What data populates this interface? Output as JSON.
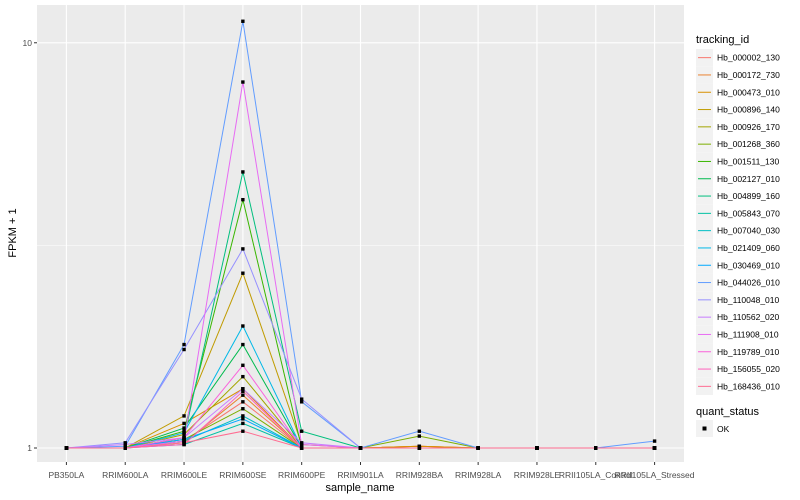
{
  "chart_data": {
    "type": "line",
    "xlabel": "sample_name",
    "ylabel": "FPKM + 1",
    "y_scale": "log",
    "ylim": [
      1,
      11
    ],
    "yticks": [
      1,
      10
    ],
    "ytick_labels": [
      "1",
      "10"
    ],
    "grid": true,
    "legend_placement": "right",
    "legend_title": "tracking_id",
    "legend2_title": "quant_status",
    "legend2_label": "OK",
    "point_color": "#000000",
    "categories": [
      "PB350LA",
      "RRIM600LA",
      "RRIM600LE",
      "RRIM600SE",
      "RRIM600PE",
      "RRIM901LA",
      "RRIM928BA",
      "RRIM928LA",
      "RRIM928LE",
      "RRII105LA_Control",
      "RRII105LA_Stressed"
    ],
    "series": [
      {
        "name": "Hb_000002_130",
        "color": "#F8766D",
        "values": [
          1.0,
          1.0,
          1.04,
          1.3,
          1.0,
          1.0,
          1.01,
          1.0,
          1.0,
          1.0,
          1.0
        ]
      },
      {
        "name": "Hb_000172_730",
        "color": "#EA8331",
        "values": [
          1.0,
          1.0,
          1.03,
          1.35,
          1.0,
          1.0,
          1.01,
          1.0,
          1.0,
          1.0,
          1.0
        ]
      },
      {
        "name": "Hb_000473_010",
        "color": "#D89000",
        "values": [
          1.0,
          1.0,
          1.15,
          1.4,
          1.0,
          1.0,
          1.01,
          1.0,
          1.0,
          1.0,
          1.0
        ]
      },
      {
        "name": "Hb_000896_140",
        "color": "#C09B00",
        "values": [
          1.0,
          1.0,
          1.2,
          2.7,
          1.02,
          1.0,
          1.0,
          1.0,
          1.0,
          1.0,
          1.0
        ]
      },
      {
        "name": "Hb_000926_170",
        "color": "#A3A500",
        "values": [
          1.0,
          1.0,
          1.08,
          1.5,
          1.0,
          1.0,
          1.0,
          1.0,
          1.0,
          1.0,
          1.0
        ]
      },
      {
        "name": "Hb_001268_360",
        "color": "#7CAE00",
        "values": [
          1.0,
          1.0,
          1.05,
          1.25,
          1.0,
          1.0,
          1.07,
          1.0,
          1.0,
          1.0,
          1.0
        ]
      },
      {
        "name": "Hb_001511_130",
        "color": "#39B600",
        "values": [
          1.0,
          1.0,
          1.1,
          4.1,
          1.0,
          1.0,
          1.0,
          1.0,
          1.0,
          1.0,
          1.0
        ]
      },
      {
        "name": "Hb_002127_010",
        "color": "#00BB4E",
        "values": [
          1.0,
          1.0,
          1.12,
          1.8,
          1.0,
          1.0,
          1.0,
          1.0,
          1.0,
          1.0,
          1.0
        ]
      },
      {
        "name": "Hb_004899_160",
        "color": "#00BF7D",
        "values": [
          1.0,
          1.0,
          1.06,
          4.8,
          1.1,
          1.0,
          1.0,
          1.0,
          1.0,
          1.0,
          1.0
        ]
      },
      {
        "name": "Hb_005843_070",
        "color": "#00C1A3",
        "values": [
          1.0,
          1.0,
          1.02,
          1.15,
          1.0,
          1.0,
          1.0,
          1.0,
          1.0,
          1.0,
          1.0
        ]
      },
      {
        "name": "Hb_007040_030",
        "color": "#00BFC4",
        "values": [
          1.0,
          1.0,
          1.04,
          1.2,
          1.0,
          1.0,
          1.0,
          1.0,
          1.0,
          1.0,
          1.0
        ]
      },
      {
        "name": "Hb_021409_060",
        "color": "#00B8E7",
        "values": [
          1.0,
          1.0,
          1.09,
          2.0,
          1.0,
          1.0,
          1.0,
          1.0,
          1.0,
          1.0,
          1.0
        ]
      },
      {
        "name": "Hb_030469_010",
        "color": "#00A9FF",
        "values": [
          1.0,
          1.0,
          1.05,
          1.18,
          1.0,
          1.0,
          1.0,
          1.0,
          1.0,
          1.0,
          1.0
        ]
      },
      {
        "name": "Hb_044026_010",
        "color": "#619CFF",
        "values": [
          1.0,
          1.01,
          1.8,
          11.3,
          1.3,
          1.0,
          1.1,
          1.0,
          1.0,
          1.0,
          1.04
        ]
      },
      {
        "name": "Hb_110048_010",
        "color": "#9590FF",
        "values": [
          1.0,
          1.03,
          1.75,
          3.1,
          1.32,
          1.0,
          1.0,
          1.0,
          1.0,
          1.0,
          1.0
        ]
      },
      {
        "name": "Hb_110562_020",
        "color": "#C77CFF",
        "values": [
          1.0,
          1.02,
          1.06,
          1.4,
          1.03,
          1.0,
          1.0,
          1.0,
          1.0,
          1.0,
          1.0
        ]
      },
      {
        "name": "Hb_111908_010",
        "color": "#E76BF3",
        "values": [
          1.0,
          1.0,
          1.04,
          8.0,
          1.02,
          1.0,
          1.0,
          1.0,
          1.0,
          1.0,
          1.0
        ]
      },
      {
        "name": "Hb_119789_010",
        "color": "#FA62DB",
        "values": [
          1.0,
          1.0,
          1.06,
          1.6,
          1.0,
          1.0,
          1.0,
          1.0,
          1.0,
          1.0,
          1.0
        ]
      },
      {
        "name": "Hb_156055_020",
        "color": "#FF62BC",
        "values": [
          1.0,
          1.0,
          1.02,
          1.38,
          1.0,
          1.0,
          1.0,
          1.0,
          1.0,
          1.0,
          1.0
        ]
      },
      {
        "name": "Hb_168436_010",
        "color": "#FF6C91",
        "values": [
          1.0,
          1.0,
          1.03,
          1.1,
          1.0,
          1.0,
          1.0,
          1.0,
          1.0,
          1.0,
          1.0
        ]
      }
    ]
  }
}
